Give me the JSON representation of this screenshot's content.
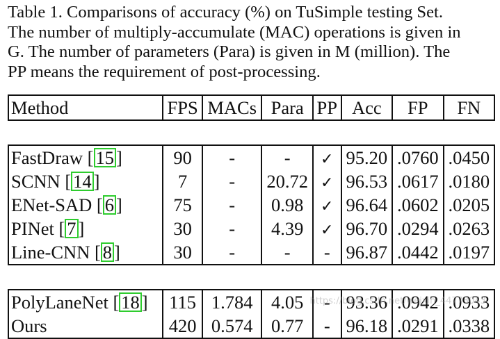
{
  "caption": {
    "lines": [
      "Table 1. Comparisons of accuracy (%) on TuSimple testing Set.",
      "The number of multiply-accumulate (MAC) operations is given in",
      "G. The number of parameters (Para) is given in M (million). The",
      "PP means the requirement of post-processing."
    ]
  },
  "table": {
    "headers": [
      "Method",
      "FPS",
      "MACs",
      "Para",
      "PP",
      "Acc",
      "FP",
      "FN"
    ],
    "group1": [
      {
        "method": "FastDraw",
        "ref": "15",
        "fps": "90",
        "macs": "-",
        "para": "-",
        "pp": "✓",
        "acc": "95.20",
        "fp": ".0760",
        "fn": ".0450"
      },
      {
        "method": "SCNN",
        "ref": "14",
        "fps": "7",
        "macs": "-",
        "para": "20.72",
        "pp": "✓",
        "acc": "96.53",
        "fp": ".0617",
        "fn": ".0180"
      },
      {
        "method": "ENet-SAD",
        "ref": "6",
        "fps": "75",
        "macs": "-",
        "para": "0.98",
        "pp": "✓",
        "acc": "96.64",
        "fp": ".0602",
        "fn": ".0205"
      },
      {
        "method": "PINet",
        "ref": "7",
        "fps": "30",
        "macs": "-",
        "para": "4.39",
        "pp": "✓",
        "acc": "96.70",
        "fp": ".0294",
        "fn": ".0263"
      },
      {
        "method": "Line-CNN",
        "ref": "8",
        "fps": "30",
        "macs": "-",
        "para": "-",
        "pp": "-",
        "acc": "96.87",
        "fp": ".0442",
        "fn": ".0197"
      }
    ],
    "group2": [
      {
        "method": "PolyLaneNet",
        "ref": "18",
        "fps": "115",
        "macs": "1.784",
        "para": "4.05",
        "pp": "-",
        "acc": "93.36",
        "fp": ".0942",
        "fn": ".0933"
      },
      {
        "method": "Ours",
        "ref": "",
        "fps": "420",
        "macs": "0.574",
        "para": "0.77",
        "pp": "-",
        "acc": "96.18",
        "fp": ".0291",
        "fn": ".0338"
      }
    ]
  },
  "watermark": "https://blog.csdn.net/weixin_44773043",
  "colors": {
    "ref_box": "#2ecc2e",
    "text": "#111111"
  }
}
